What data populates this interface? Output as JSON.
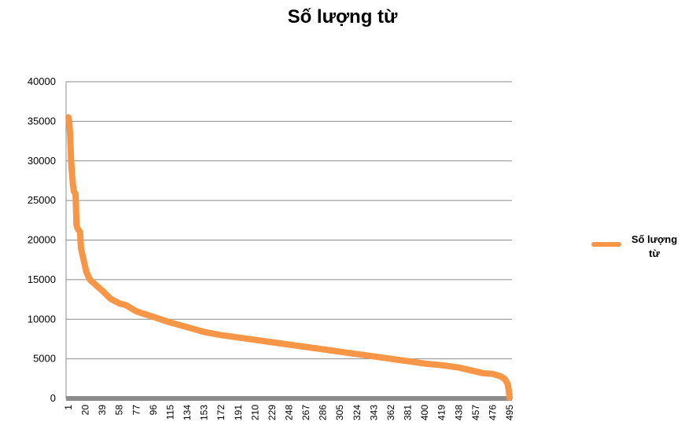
{
  "chart_data": {
    "type": "line",
    "title": "Số lượng từ",
    "xlabel": "",
    "ylabel": "",
    "ylim": [
      0,
      40000
    ],
    "y_ticks": [
      "0",
      "5000",
      "10000",
      "15000",
      "20000",
      "25000",
      "30000",
      "35000",
      "40000"
    ],
    "x_ticks": [
      "1",
      "20",
      "39",
      "58",
      "77",
      "96",
      "115",
      "134",
      "153",
      "172",
      "191",
      "210",
      "229",
      "248",
      "267",
      "286",
      "305",
      "324",
      "343",
      "362",
      "381",
      "400",
      "419",
      "438",
      "457",
      "476",
      "495"
    ],
    "x_range": [
      1,
      495
    ],
    "grid": true,
    "legend_position": "right",
    "series": [
      {
        "name": "Số lượng từ",
        "color": "#f79646",
        "points": [
          [
            1,
            35500
          ],
          [
            2,
            34800
          ],
          [
            3,
            33000
          ],
          [
            4,
            30000
          ],
          [
            5,
            28500
          ],
          [
            6,
            27000
          ],
          [
            7,
            26200
          ],
          [
            9,
            25800
          ],
          [
            10,
            22000
          ],
          [
            11,
            21500
          ],
          [
            14,
            21000
          ],
          [
            15,
            19000
          ],
          [
            17,
            18000
          ],
          [
            19,
            17000
          ],
          [
            21,
            16000
          ],
          [
            25,
            15000
          ],
          [
            30,
            14500
          ],
          [
            35,
            14000
          ],
          [
            40,
            13500
          ],
          [
            48,
            12600
          ],
          [
            58,
            12000
          ],
          [
            65,
            11800
          ],
          [
            77,
            11000
          ],
          [
            85,
            10700
          ],
          [
            96,
            10300
          ],
          [
            115,
            9600
          ],
          [
            134,
            9000
          ],
          [
            153,
            8400
          ],
          [
            172,
            8000
          ],
          [
            191,
            7700
          ],
          [
            210,
            7400
          ],
          [
            229,
            7100
          ],
          [
            248,
            6800
          ],
          [
            267,
            6500
          ],
          [
            286,
            6200
          ],
          [
            305,
            5900
          ],
          [
            324,
            5600
          ],
          [
            343,
            5300
          ],
          [
            362,
            5000
          ],
          [
            381,
            4700
          ],
          [
            400,
            4400
          ],
          [
            419,
            4200
          ],
          [
            438,
            3900
          ],
          [
            457,
            3400
          ],
          [
            465,
            3200
          ],
          [
            476,
            3100
          ],
          [
            485,
            2800
          ],
          [
            490,
            2400
          ],
          [
            493,
            1800
          ],
          [
            494,
            1000
          ],
          [
            495,
            100
          ]
        ]
      }
    ]
  }
}
